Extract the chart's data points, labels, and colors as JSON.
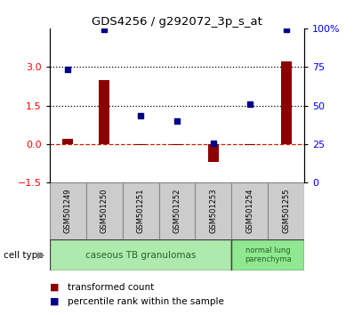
{
  "title": "GDS4256 / g292072_3p_s_at",
  "samples": [
    "GSM501249",
    "GSM501250",
    "GSM501251",
    "GSM501252",
    "GSM501253",
    "GSM501254",
    "GSM501255"
  ],
  "transformed_count": [
    0.2,
    2.5,
    -0.05,
    -0.05,
    -0.7,
    -0.05,
    3.2
  ],
  "percentile_rank_left": [
    2.9,
    4.45,
    1.1,
    0.9,
    0.05,
    1.55,
    4.45
  ],
  "bar_color": "#8b0000",
  "dot_color": "#00008b",
  "ylim_left": [
    -1.5,
    4.5
  ],
  "ylim_right": [
    0,
    100
  ],
  "yticks_left": [
    -1.5,
    0,
    1.5,
    3
  ],
  "yticks_right": [
    0,
    25,
    50,
    75,
    100
  ],
  "ytick_labels_right": [
    "0",
    "25",
    "50",
    "75",
    "100%"
  ],
  "hlines": [
    3.0,
    1.5
  ],
  "hline0_color": "#cc2200",
  "bg_color": "#ffffff",
  "sample_box_color": "#cccccc",
  "cell_type_colors": [
    "#aeeaae",
    "#90e890"
  ],
  "cell_type_labels": [
    "caseous TB granulomas",
    "normal lung\nparenchyma"
  ],
  "cell_type_ranges": [
    [
      0,
      4
    ],
    [
      5,
      6
    ]
  ],
  "legend_bar_label": "transformed count",
  "legend_dot_label": "percentile rank within the sample"
}
